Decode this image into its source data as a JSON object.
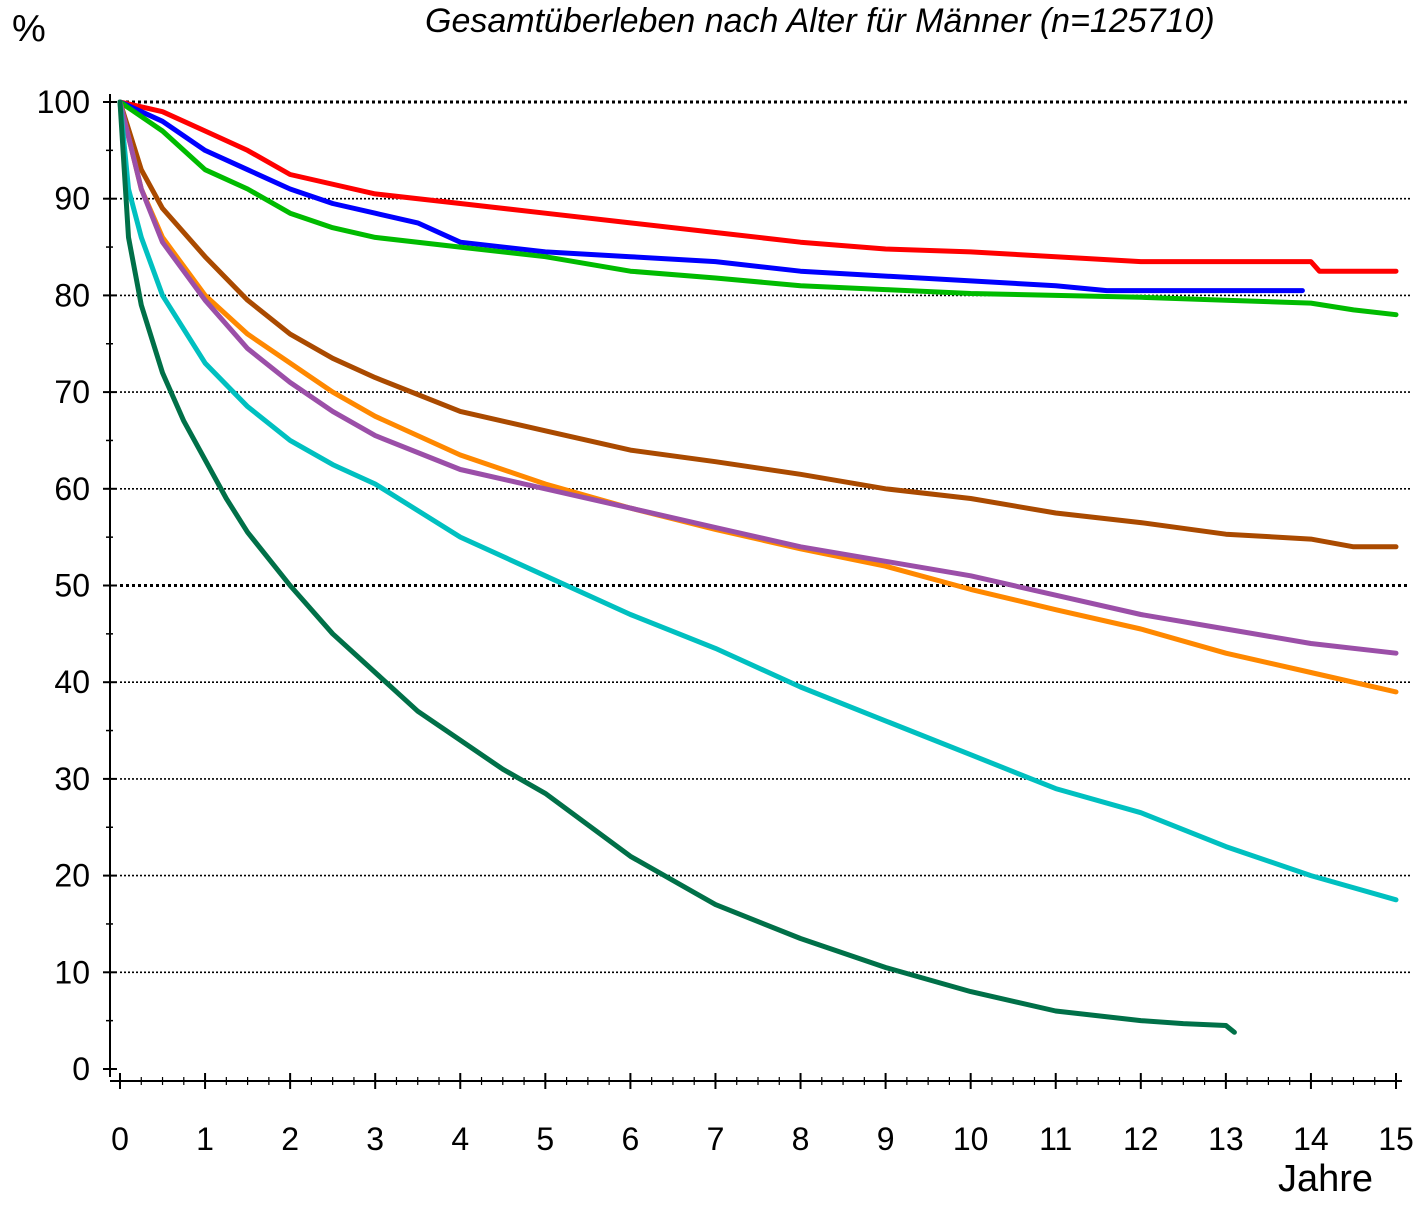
{
  "chart_data": {
    "type": "line",
    "title": "Gesamtüberleben nach Alter für Männer (n=125710)",
    "ylabel": "%",
    "xlabel": "Jahre",
    "xlim": [
      0,
      15
    ],
    "ylim": [
      0,
      100
    ],
    "xticks": [
      0,
      1,
      2,
      3,
      4,
      5,
      6,
      7,
      8,
      9,
      10,
      11,
      12,
      13,
      14,
      15
    ],
    "yticks": [
      0,
      10,
      20,
      30,
      40,
      50,
      60,
      70,
      80,
      90,
      100
    ],
    "grid": "horizontal dotted at each y tick; bold at 50 and 100",
    "series": [
      {
        "color": "#ff0000",
        "x": [
          0,
          0.5,
          1,
          1.5,
          2,
          3,
          4,
          5,
          6,
          7,
          8,
          9,
          10,
          11,
          12,
          13,
          14,
          14.1,
          15
        ],
        "y": [
          100,
          99,
          97,
          95,
          92.5,
          90.5,
          89.5,
          88.5,
          87.5,
          86.5,
          85.5,
          84.8,
          84.5,
          84,
          83.5,
          83.5,
          83.5,
          82.5,
          82.5
        ]
      },
      {
        "color": "#0000ff",
        "x": [
          0,
          0.5,
          1,
          1.5,
          2,
          2.5,
          3,
          3.5,
          4,
          5,
          6,
          7,
          8,
          9,
          10,
          11,
          11.6,
          12,
          13,
          13.9
        ],
        "y": [
          100,
          98,
          95,
          93,
          91,
          89.5,
          88.5,
          87.5,
          85.5,
          84.5,
          84,
          83.5,
          82.5,
          82,
          81.5,
          81,
          80.5,
          80.5,
          80.5,
          80.5
        ]
      },
      {
        "color": "#00bb00",
        "x": [
          0,
          0.5,
          1,
          1.5,
          2,
          2.5,
          3,
          4,
          5,
          6,
          7,
          8,
          9,
          10,
          11,
          12,
          13,
          14,
          14.5,
          15
        ],
        "y": [
          100,
          97,
          93,
          91,
          88.5,
          87,
          86,
          85,
          84,
          82.5,
          81.8,
          81,
          80.6,
          80.2,
          80,
          79.8,
          79.5,
          79.2,
          78.5,
          78
        ]
      },
      {
        "color": "#aa4a00",
        "x": [
          0,
          0.25,
          0.5,
          1,
          1.5,
          2,
          2.5,
          3,
          4,
          5,
          6,
          7,
          8,
          9,
          10,
          11,
          12,
          13,
          14,
          14.5,
          15
        ],
        "y": [
          100,
          93,
          89,
          84,
          79.5,
          76,
          73.5,
          71.5,
          68,
          66,
          64,
          62.8,
          61.5,
          60,
          59,
          57.5,
          56.5,
          55.3,
          54.8,
          54,
          54
        ]
      },
      {
        "color": "#ff8800",
        "x": [
          0,
          0.25,
          0.5,
          1,
          1.5,
          2,
          2.5,
          3,
          4,
          5,
          6,
          7,
          8,
          9,
          10,
          11,
          12,
          13,
          14,
          15
        ],
        "y": [
          100,
          91,
          86,
          80,
          76,
          73,
          70,
          67.5,
          63.5,
          60.5,
          58,
          55.8,
          53.8,
          52,
          49.6,
          47.5,
          45.5,
          43,
          41,
          39
        ]
      },
      {
        "color": "#9b4fa8",
        "x": [
          0,
          0.25,
          0.5,
          1,
          1.5,
          2,
          2.5,
          3,
          4,
          5,
          6,
          7,
          8,
          9,
          10,
          11,
          12,
          13,
          14,
          15
        ],
        "y": [
          100,
          91,
          85.5,
          79.5,
          74.5,
          71,
          68,
          65.5,
          62,
          60,
          58,
          56,
          54,
          52.5,
          51,
          49,
          47,
          45.5,
          44,
          43
        ]
      },
      {
        "color": "#00c0c0",
        "x": [
          0,
          0.1,
          0.25,
          0.5,
          1,
          1.5,
          2,
          2.5,
          3,
          4,
          5,
          6,
          7,
          8,
          9,
          10,
          11,
          12,
          13,
          14,
          15
        ],
        "y": [
          100,
          91,
          86,
          80,
          73,
          68.5,
          65,
          62.5,
          60.5,
          55,
          51,
          47,
          43.5,
          39.5,
          36,
          32.5,
          29,
          26.5,
          23,
          20,
          17.5
        ]
      },
      {
        "color": "#007048",
        "x": [
          0,
          0.1,
          0.25,
          0.5,
          0.75,
          1,
          1.25,
          1.5,
          2,
          2.5,
          3,
          3.5,
          4,
          4.5,
          5,
          6,
          7,
          8,
          9,
          10,
          11,
          12,
          12.5,
          13,
          13.1
        ],
        "y": [
          100,
          86,
          79,
          72,
          67,
          63,
          59,
          55.5,
          50,
          45,
          41,
          37,
          34,
          31,
          28.5,
          22,
          17,
          13.5,
          10.5,
          8,
          6,
          5,
          4.7,
          4.5,
          3.8
        ]
      }
    ]
  }
}
